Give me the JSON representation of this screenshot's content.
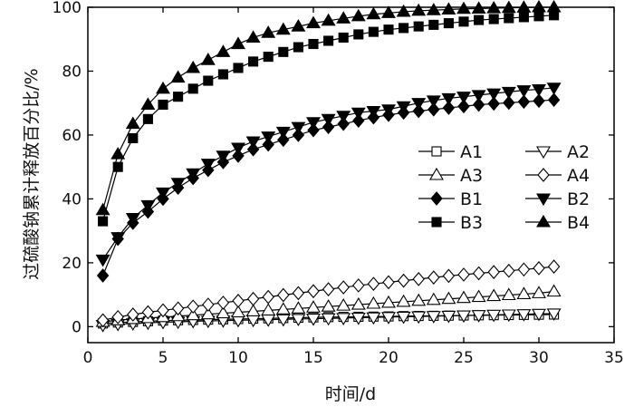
{
  "chart_data": {
    "type": "line",
    "xlabel": "时间/d",
    "ylabel": "过硫酸钠累计释放百分比/%",
    "xlim": [
      0,
      35
    ],
    "ylim": [
      -5,
      100
    ],
    "xticks": [
      0,
      5,
      10,
      15,
      20,
      25,
      30,
      35
    ],
    "yticks": [
      0,
      20,
      40,
      60,
      80,
      100
    ],
    "grid": false,
    "legend_position": "center-right",
    "x": [
      1,
      2,
      3,
      4,
      5,
      6,
      7,
      8,
      9,
      10,
      11,
      12,
      13,
      14,
      15,
      16,
      17,
      18,
      19,
      20,
      21,
      22,
      23,
      24,
      25,
      26,
      27,
      28,
      29,
      30,
      31
    ],
    "series": [
      {
        "name": "A1",
        "marker": "square-open",
        "values": [
          1.0,
          1.3,
          1.5,
          1.7,
          1.9,
          2.0,
          2.1,
          2.2,
          2.3,
          2.4,
          2.5,
          2.6,
          2.7,
          2.8,
          2.9,
          3.0,
          3.05,
          3.1,
          3.15,
          3.2,
          3.3,
          3.35,
          3.4,
          3.45,
          3.5,
          3.55,
          3.6,
          3.65,
          3.7,
          3.75,
          3.8
        ]
      },
      {
        "name": "A2",
        "marker": "triangle-down-open",
        "values": [
          0.5,
          0.8,
          1.0,
          1.2,
          1.4,
          1.5,
          1.7,
          1.8,
          1.9,
          2.0,
          2.1,
          2.2,
          2.3,
          2.4,
          2.5,
          2.6,
          2.7,
          2.8,
          2.9,
          3.0,
          3.1,
          3.2,
          3.3,
          3.4,
          3.5,
          3.6,
          3.7,
          3.8,
          3.9,
          4.0,
          4.1
        ]
      },
      {
        "name": "A3",
        "marker": "triangle-up-open",
        "values": [
          1.5,
          2.0,
          2.4,
          2.7,
          3.0,
          3.3,
          3.6,
          3.9,
          4.2,
          4.5,
          4.8,
          5.1,
          5.4,
          5.7,
          6.0,
          6.3,
          6.6,
          6.9,
          7.2,
          7.5,
          7.8,
          8.1,
          8.4,
          8.7,
          9.0,
          9.3,
          9.6,
          9.9,
          10.2,
          10.5,
          11.0
        ]
      },
      {
        "name": "A4",
        "marker": "diamond-open",
        "values": [
          2.0,
          3.0,
          3.8,
          4.5,
          5.1,
          5.7,
          6.3,
          6.9,
          7.5,
          8.1,
          8.7,
          9.3,
          9.9,
          10.5,
          11.1,
          11.7,
          12.3,
          12.9,
          13.4,
          13.9,
          14.4,
          14.9,
          15.4,
          15.9,
          16.3,
          16.7,
          17.1,
          17.5,
          17.9,
          18.3,
          18.8
        ]
      },
      {
        "name": "B1",
        "marker": "diamond-filled",
        "values": [
          16.0,
          27.5,
          32.5,
          36.0,
          40.0,
          43.5,
          46.5,
          49.0,
          51.5,
          53.5,
          55.5,
          57.0,
          58.5,
          60.0,
          61.5,
          62.5,
          63.5,
          64.5,
          65.5,
          66.3,
          67.0,
          67.5,
          68.0,
          68.5,
          69.0,
          69.5,
          69.8,
          70.1,
          70.4,
          70.7,
          71.0
        ]
      },
      {
        "name": "B2",
        "marker": "triangle-down-filled",
        "values": [
          21.0,
          28.0,
          34.0,
          38.0,
          42.0,
          45.0,
          48.0,
          51.0,
          53.5,
          56.0,
          58.0,
          59.5,
          61.0,
          62.5,
          64.0,
          65.0,
          66.0,
          67.0,
          67.5,
          68.0,
          69.0,
          70.0,
          70.8,
          71.5,
          72.0,
          72.5,
          73.0,
          73.5,
          74.0,
          74.3,
          74.8
        ]
      },
      {
        "name": "B3",
        "marker": "square-filled",
        "values": [
          33.0,
          50.0,
          59.0,
          65.0,
          69.5,
          72.0,
          74.5,
          77.0,
          79.0,
          81.0,
          83.0,
          84.5,
          86.0,
          87.5,
          88.5,
          89.5,
          90.5,
          91.5,
          92.3,
          93.0,
          93.5,
          94.0,
          94.5,
          95.0,
          95.5,
          96.0,
          96.3,
          96.6,
          96.9,
          97.2,
          97.5
        ]
      },
      {
        "name": "B4",
        "marker": "triangle-up-filled",
        "values": [
          36.5,
          54.0,
          63.5,
          69.5,
          74.5,
          78.0,
          81.0,
          83.5,
          86.0,
          88.5,
          90.5,
          92.0,
          93.0,
          94.0,
          95.0,
          95.8,
          96.5,
          97.2,
          97.8,
          98.2,
          98.6,
          98.9,
          99.1,
          99.3,
          99.5,
          99.6,
          99.7,
          99.8,
          99.9,
          100.0,
          100.0
        ]
      }
    ],
    "legend": {
      "entries": [
        "A1",
        "A2",
        "A3",
        "A4",
        "B1",
        "B2",
        "B3",
        "B4"
      ]
    }
  }
}
